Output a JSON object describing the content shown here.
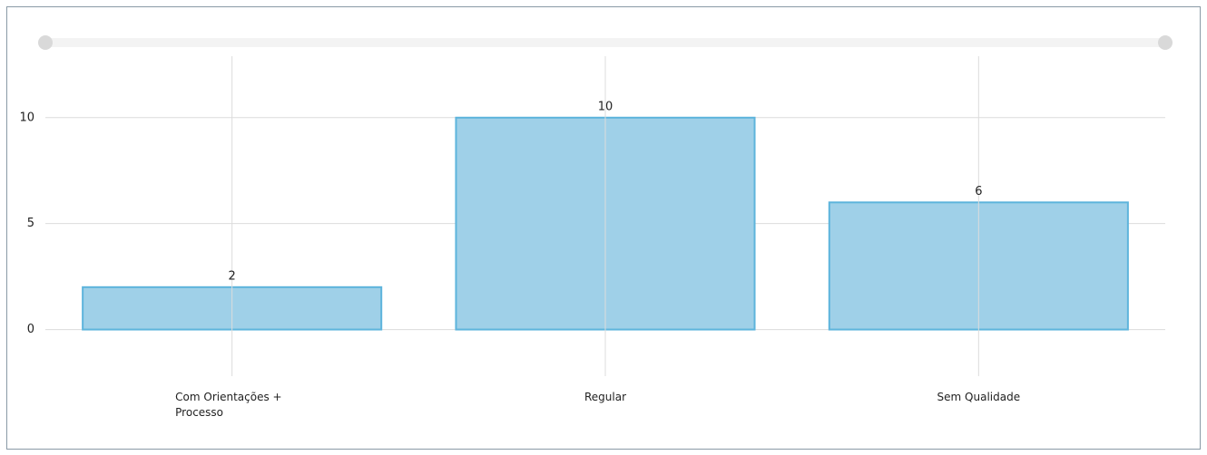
{
  "chart_data": {
    "type": "bar",
    "categories": [
      "Com Orientações + Processo",
      "Regular",
      "Sem Qualidade"
    ],
    "values": [
      2,
      10,
      6
    ],
    "color": "#9fd0e8",
    "ylim": [
      -2.2,
      12.9
    ],
    "yticks": [
      0,
      5,
      10
    ],
    "grid": true
  }
}
